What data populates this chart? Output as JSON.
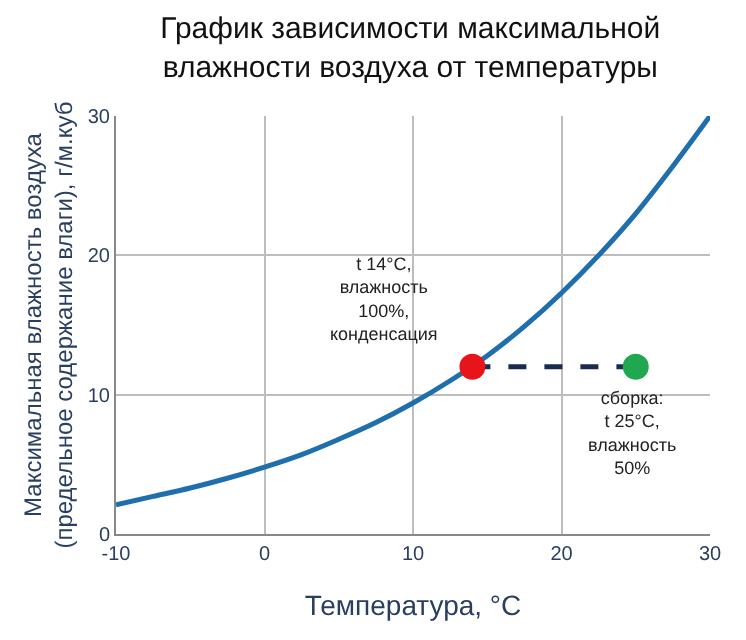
{
  "chart_data": {
    "type": "line",
    "title": "График зависимости максимальной\nвлажности воздуха от температуры",
    "xlabel": "Температура, °С",
    "ylabel": "Максимальная влажность воздуха\n(предельное содержание влаги), г/м.куб",
    "xlim": [
      -10,
      30
    ],
    "xticks": [
      -10,
      0,
      10,
      20,
      30
    ],
    "ylim": [
      0,
      30
    ],
    "yticks": [
      0,
      10,
      20,
      30
    ],
    "grid": true,
    "series": [
      {
        "color": "#1f6fad",
        "marker": "none",
        "line_style": "solid",
        "x": [
          -10,
          -7.5,
          -5,
          -2.5,
          0,
          2.5,
          5,
          7.5,
          10,
          12.5,
          15,
          17.5,
          20,
          22.5,
          25,
          27.5,
          30
        ],
        "values": [
          2.1,
          2.7,
          3.3,
          4.0,
          4.8,
          5.7,
          6.8,
          8.0,
          9.4,
          11.0,
          12.8,
          14.9,
          17.3,
          20.0,
          23.0,
          26.4,
          30.0
        ]
      },
      {
        "type": "line",
        "color": "#1a2a50",
        "marker": "none",
        "line_style": "dashed",
        "x": [
          14,
          25
        ],
        "values": [
          12,
          12
        ]
      },
      {
        "type": "scatter",
        "color": "#e8141c",
        "marker": "circle",
        "x": [
          14
        ],
        "values": [
          12
        ]
      },
      {
        "type": "scatter",
        "color": "#1fa84f",
        "marker": "circle",
        "x": [
          25
        ],
        "values": [
          12
        ]
      }
    ],
    "annotations": [
      "t 14°С,\nвлажность\n100%,\nконденсация",
      "сборка:\nt 25°С,\nвлажность\n50%"
    ]
  }
}
